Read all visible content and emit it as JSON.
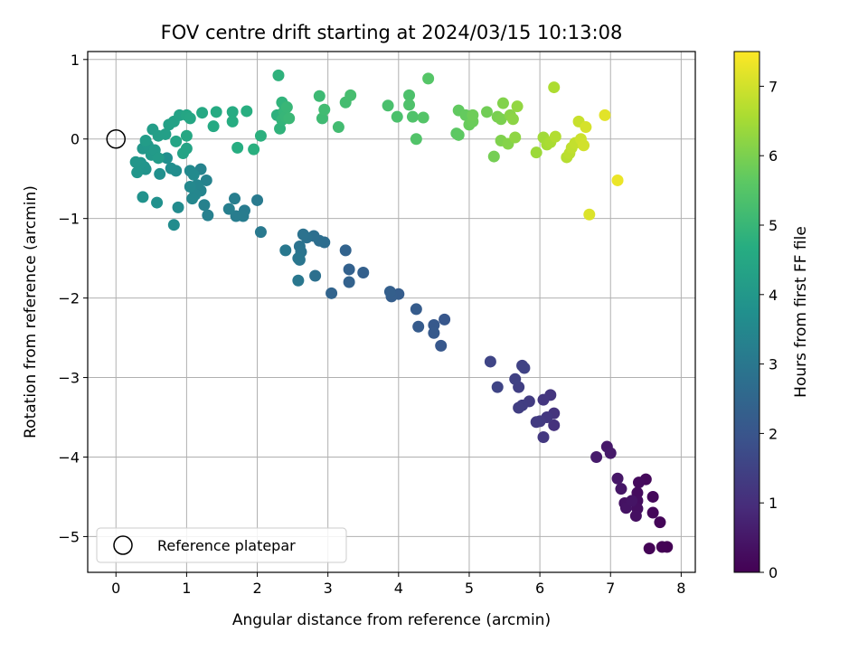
{
  "chart_data": {
    "type": "scatter",
    "title": "FOV centre drift starting at 2024/03/15 10:13:08",
    "xlabel": "Angular distance from reference (arcmin)",
    "ylabel": "Rotation from reference (arcmin)",
    "colorbar_label": "Hours from first FF file",
    "xlim": [
      -0.4,
      8.2
    ],
    "ylim": [
      -5.45,
      1.1
    ],
    "xticks": [
      0,
      1,
      2,
      3,
      4,
      5,
      6,
      7,
      8
    ],
    "xtick_labels": [
      "0",
      "1",
      "2",
      "3",
      "4",
      "5",
      "6",
      "7",
      "8"
    ],
    "yticks": [
      -5,
      -4,
      -3,
      -2,
      -1,
      0,
      1
    ],
    "ytick_labels": [
      "−5",
      "−4",
      "−3",
      "−2",
      "−1",
      "0",
      "1"
    ],
    "colorbar_range": [
      0,
      7.5
    ],
    "colorbar_ticks": [
      0,
      1,
      2,
      3,
      4,
      5,
      6,
      7
    ],
    "colorbar_tick_labels": [
      "0",
      "1",
      "2",
      "3",
      "4",
      "5",
      "6",
      "7"
    ],
    "colormap": "viridis",
    "grid": true,
    "legend": {
      "placement": "lower-left",
      "entries": [
        {
          "label": "Reference platepar",
          "marker": "open-circle"
        }
      ]
    },
    "reference_point": {
      "x": 0,
      "y": 0
    },
    "points": [
      {
        "x": 7.8,
        "y": -5.13,
        "t": 0.0
      },
      {
        "x": 7.73,
        "y": -5.13,
        "t": 0.03
      },
      {
        "x": 7.55,
        "y": -5.15,
        "t": 0.06
      },
      {
        "x": 7.7,
        "y": -4.82,
        "t": 0.09
      },
      {
        "x": 7.6,
        "y": -4.7,
        "t": 0.12
      },
      {
        "x": 7.6,
        "y": -4.5,
        "t": 0.15
      },
      {
        "x": 7.5,
        "y": -4.28,
        "t": 0.18
      },
      {
        "x": 7.4,
        "y": -4.32,
        "t": 0.21
      },
      {
        "x": 7.38,
        "y": -4.45,
        "t": 0.24
      },
      {
        "x": 7.38,
        "y": -4.55,
        "t": 0.27
      },
      {
        "x": 7.38,
        "y": -4.65,
        "t": 0.3
      },
      {
        "x": 7.36,
        "y": -4.74,
        "t": 0.33
      },
      {
        "x": 7.2,
        "y": -4.58,
        "t": 0.36
      },
      {
        "x": 7.22,
        "y": -4.64,
        "t": 0.39
      },
      {
        "x": 7.3,
        "y": -4.55,
        "t": 0.42
      },
      {
        "x": 7.15,
        "y": -4.4,
        "t": 0.45
      },
      {
        "x": 7.1,
        "y": -4.27,
        "t": 0.48
      },
      {
        "x": 6.95,
        "y": -3.87,
        "t": 0.51
      },
      {
        "x": 7.0,
        "y": -3.95,
        "t": 0.54
      },
      {
        "x": 6.8,
        "y": -4.0,
        "t": 0.57
      },
      {
        "x": 6.2,
        "y": -3.6,
        "t": 1.1
      },
      {
        "x": 6.2,
        "y": -3.45,
        "t": 1.13
      },
      {
        "x": 6.15,
        "y": -3.22,
        "t": 1.16
      },
      {
        "x": 6.05,
        "y": -3.28,
        "t": 1.19
      },
      {
        "x": 6.1,
        "y": -3.5,
        "t": 1.22
      },
      {
        "x": 6.05,
        "y": -3.75,
        "t": 1.25
      },
      {
        "x": 6.0,
        "y": -3.55,
        "t": 1.28
      },
      {
        "x": 5.95,
        "y": -3.56,
        "t": 1.31
      },
      {
        "x": 5.85,
        "y": -3.3,
        "t": 1.34
      },
      {
        "x": 5.75,
        "y": -3.35,
        "t": 1.37
      },
      {
        "x": 5.7,
        "y": -3.38,
        "t": 1.4
      },
      {
        "x": 5.7,
        "y": -3.12,
        "t": 1.43
      },
      {
        "x": 5.65,
        "y": -3.02,
        "t": 1.46
      },
      {
        "x": 5.75,
        "y": -2.85,
        "t": 1.49
      },
      {
        "x": 5.78,
        "y": -2.88,
        "t": 1.52
      },
      {
        "x": 5.4,
        "y": -3.12,
        "t": 1.55
      },
      {
        "x": 5.3,
        "y": -2.8,
        "t": 1.58
      },
      {
        "x": 4.65,
        "y": -2.27,
        "t": 2.05
      },
      {
        "x": 4.6,
        "y": -2.6,
        "t": 2.08
      },
      {
        "x": 4.5,
        "y": -2.34,
        "t": 2.11
      },
      {
        "x": 4.5,
        "y": -2.44,
        "t": 2.14
      },
      {
        "x": 4.28,
        "y": -2.36,
        "t": 2.17
      },
      {
        "x": 4.25,
        "y": -2.14,
        "t": 2.2
      },
      {
        "x": 4.0,
        "y": -1.95,
        "t": 2.23
      },
      {
        "x": 3.9,
        "y": -1.98,
        "t": 2.26
      },
      {
        "x": 3.88,
        "y": -1.92,
        "t": 2.29
      },
      {
        "x": 3.5,
        "y": -1.68,
        "t": 2.32
      },
      {
        "x": 3.3,
        "y": -1.64,
        "t": 2.35
      },
      {
        "x": 3.3,
        "y": -1.8,
        "t": 2.38
      },
      {
        "x": 3.25,
        "y": -1.4,
        "t": 2.41
      },
      {
        "x": 3.05,
        "y": -1.94,
        "t": 2.44
      },
      {
        "x": 2.95,
        "y": -1.3,
        "t": 2.7
      },
      {
        "x": 2.88,
        "y": -1.28,
        "t": 2.73
      },
      {
        "x": 2.8,
        "y": -1.22,
        "t": 2.76
      },
      {
        "x": 2.82,
        "y": -1.72,
        "t": 2.79
      },
      {
        "x": 2.7,
        "y": -1.24,
        "t": 2.82
      },
      {
        "x": 2.65,
        "y": -1.2,
        "t": 2.85
      },
      {
        "x": 2.6,
        "y": -1.35,
        "t": 2.88
      },
      {
        "x": 2.62,
        "y": -1.42,
        "t": 2.91
      },
      {
        "x": 2.6,
        "y": -1.52,
        "t": 2.94
      },
      {
        "x": 2.58,
        "y": -1.5,
        "t": 2.97
      },
      {
        "x": 2.58,
        "y": -1.78,
        "t": 3.0
      },
      {
        "x": 2.4,
        "y": -1.4,
        "t": 3.03
      },
      {
        "x": 2.05,
        "y": -1.17,
        "t": 3.06
      },
      {
        "x": 2.0,
        "y": -0.77,
        "t": 3.09
      },
      {
        "x": 1.82,
        "y": -0.9,
        "t": 3.12
      },
      {
        "x": 1.8,
        "y": -0.97,
        "t": 3.15
      },
      {
        "x": 1.7,
        "y": -0.97,
        "t": 3.18
      },
      {
        "x": 1.68,
        "y": -0.75,
        "t": 3.21
      },
      {
        "x": 1.6,
        "y": -0.88,
        "t": 3.24
      },
      {
        "x": 1.3,
        "y": -0.96,
        "t": 3.27
      },
      {
        "x": 1.25,
        "y": -0.83,
        "t": 3.3
      },
      {
        "x": 1.28,
        "y": -0.52,
        "t": 3.33
      },
      {
        "x": 1.2,
        "y": -0.38,
        "t": 3.36
      },
      {
        "x": 1.2,
        "y": -0.65,
        "t": 3.39
      },
      {
        "x": 1.15,
        "y": -0.58,
        "t": 3.42
      },
      {
        "x": 1.12,
        "y": -0.7,
        "t": 3.45
      },
      {
        "x": 1.08,
        "y": -0.75,
        "t": 3.48
      },
      {
        "x": 1.05,
        "y": -0.6,
        "t": 3.51
      },
      {
        "x": 1.05,
        "y": -0.4,
        "t": 3.54
      },
      {
        "x": 1.1,
        "y": -0.45,
        "t": 3.57
      },
      {
        "x": 0.88,
        "y": -0.86,
        "t": 3.6
      },
      {
        "x": 0.82,
        "y": -1.08,
        "t": 3.63
      },
      {
        "x": 0.85,
        "y": -0.4,
        "t": 3.66
      },
      {
        "x": 0.78,
        "y": -0.37,
        "t": 3.69
      },
      {
        "x": 0.72,
        "y": -0.24,
        "t": 3.72
      },
      {
        "x": 0.62,
        "y": -0.44,
        "t": 3.75
      },
      {
        "x": 0.58,
        "y": -0.8,
        "t": 3.78
      },
      {
        "x": 0.38,
        "y": -0.73,
        "t": 3.81
      },
      {
        "x": 0.42,
        "y": -0.38,
        "t": 3.84
      },
      {
        "x": 0.4,
        "y": -0.35,
        "t": 3.87
      },
      {
        "x": 0.35,
        "y": -0.3,
        "t": 3.9
      },
      {
        "x": 0.3,
        "y": -0.42,
        "t": 3.93
      },
      {
        "x": 0.28,
        "y": -0.29,
        "t": 3.96
      },
      {
        "x": 0.38,
        "y": -0.12,
        "t": 3.99
      },
      {
        "x": 0.45,
        "y": -0.08,
        "t": 4.02
      },
      {
        "x": 0.5,
        "y": -0.2,
        "t": 4.05
      },
      {
        "x": 0.55,
        "y": -0.14,
        "t": 4.08
      },
      {
        "x": 0.6,
        "y": -0.24,
        "t": 4.11
      },
      {
        "x": 0.42,
        "y": -0.02,
        "t": 4.14
      },
      {
        "x": 0.52,
        "y": 0.12,
        "t": 4.17
      },
      {
        "x": 0.6,
        "y": 0.04,
        "t": 4.2
      },
      {
        "x": 0.7,
        "y": 0.06,
        "t": 4.23
      },
      {
        "x": 0.75,
        "y": 0.18,
        "t": 4.26
      },
      {
        "x": 0.82,
        "y": 0.22,
        "t": 4.29
      },
      {
        "x": 0.9,
        "y": 0.3,
        "t": 4.32
      },
      {
        "x": 0.95,
        "y": -0.18,
        "t": 4.35
      },
      {
        "x": 1.0,
        "y": -0.12,
        "t": 4.38
      },
      {
        "x": 0.85,
        "y": -0.03,
        "t": 4.41
      },
      {
        "x": 1.0,
        "y": 0.3,
        "t": 4.44
      },
      {
        "x": 1.05,
        "y": 0.26,
        "t": 4.47
      },
      {
        "x": 1.0,
        "y": 0.04,
        "t": 4.5
      },
      {
        "x": 1.22,
        "y": 0.33,
        "t": 4.53
      },
      {
        "x": 1.38,
        "y": 0.16,
        "t": 4.56
      },
      {
        "x": 1.42,
        "y": 0.34,
        "t": 4.59
      },
      {
        "x": 1.65,
        "y": 0.34,
        "t": 4.62
      },
      {
        "x": 1.65,
        "y": 0.22,
        "t": 4.65
      },
      {
        "x": 1.72,
        "y": -0.11,
        "t": 4.68
      },
      {
        "x": 1.85,
        "y": 0.35,
        "t": 4.71
      },
      {
        "x": 1.95,
        "y": -0.13,
        "t": 4.74
      },
      {
        "x": 2.05,
        "y": 0.04,
        "t": 4.77
      },
      {
        "x": 2.28,
        "y": 0.3,
        "t": 4.8
      },
      {
        "x": 2.3,
        "y": 0.8,
        "t": 4.83
      },
      {
        "x": 2.32,
        "y": 0.13,
        "t": 4.86
      },
      {
        "x": 2.35,
        "y": 0.46,
        "t": 4.89
      },
      {
        "x": 2.35,
        "y": 0.24,
        "t": 4.92
      },
      {
        "x": 2.38,
        "y": 0.35,
        "t": 4.95
      },
      {
        "x": 2.4,
        "y": 0.28,
        "t": 4.98
      },
      {
        "x": 2.42,
        "y": 0.4,
        "t": 5.01
      },
      {
        "x": 2.45,
        "y": 0.26,
        "t": 5.04
      },
      {
        "x": 2.88,
        "y": 0.54,
        "t": 5.1
      },
      {
        "x": 2.92,
        "y": 0.26,
        "t": 5.13
      },
      {
        "x": 2.95,
        "y": 0.37,
        "t": 5.16
      },
      {
        "x": 3.15,
        "y": 0.15,
        "t": 5.19
      },
      {
        "x": 3.25,
        "y": 0.46,
        "t": 5.22
      },
      {
        "x": 3.32,
        "y": 0.55,
        "t": 5.25
      },
      {
        "x": 3.85,
        "y": 0.42,
        "t": 5.3
      },
      {
        "x": 3.98,
        "y": 0.28,
        "t": 5.33
      },
      {
        "x": 4.15,
        "y": 0.55,
        "t": 5.36
      },
      {
        "x": 4.15,
        "y": 0.43,
        "t": 5.39
      },
      {
        "x": 4.2,
        "y": 0.28,
        "t": 5.42
      },
      {
        "x": 4.25,
        "y": 0.0,
        "t": 5.45
      },
      {
        "x": 4.35,
        "y": 0.27,
        "t": 5.48
      },
      {
        "x": 4.42,
        "y": 0.76,
        "t": 5.51
      },
      {
        "x": 4.82,
        "y": 0.07,
        "t": 5.6
      },
      {
        "x": 4.85,
        "y": 0.05,
        "t": 5.64
      },
      {
        "x": 4.85,
        "y": 0.36,
        "t": 5.68
      },
      {
        "x": 4.95,
        "y": 0.3,
        "t": 5.72
      },
      {
        "x": 5.0,
        "y": 0.18,
        "t": 5.76
      },
      {
        "x": 5.05,
        "y": 0.22,
        "t": 5.8
      },
      {
        "x": 5.05,
        "y": 0.3,
        "t": 5.84
      },
      {
        "x": 5.25,
        "y": 0.34,
        "t": 5.88
      },
      {
        "x": 5.35,
        "y": -0.22,
        "t": 5.92
      },
      {
        "x": 5.4,
        "y": 0.28,
        "t": 5.96
      },
      {
        "x": 5.45,
        "y": 0.25,
        "t": 6.0
      },
      {
        "x": 5.45,
        "y": -0.02,
        "t": 6.04
      },
      {
        "x": 5.48,
        "y": 0.45,
        "t": 6.08
      },
      {
        "x": 5.55,
        "y": -0.06,
        "t": 6.12
      },
      {
        "x": 5.58,
        "y": 0.3,
        "t": 6.16
      },
      {
        "x": 5.62,
        "y": 0.25,
        "t": 6.2
      },
      {
        "x": 5.65,
        "y": 0.02,
        "t": 6.24
      },
      {
        "x": 5.68,
        "y": 0.41,
        "t": 6.28
      },
      {
        "x": 5.95,
        "y": -0.17,
        "t": 6.4
      },
      {
        "x": 6.05,
        "y": 0.02,
        "t": 6.45
      },
      {
        "x": 6.1,
        "y": -0.07,
        "t": 6.5
      },
      {
        "x": 6.15,
        "y": -0.04,
        "t": 6.55
      },
      {
        "x": 6.2,
        "y": 0.65,
        "t": 6.6
      },
      {
        "x": 6.22,
        "y": 0.03,
        "t": 6.65
      },
      {
        "x": 6.38,
        "y": -0.23,
        "t": 6.7
      },
      {
        "x": 6.42,
        "y": -0.18,
        "t": 6.75
      },
      {
        "x": 6.45,
        "y": -0.11,
        "t": 6.8
      },
      {
        "x": 6.5,
        "y": -0.05,
        "t": 6.85
      },
      {
        "x": 6.55,
        "y": 0.22,
        "t": 6.9
      },
      {
        "x": 6.58,
        "y": 0.0,
        "t": 6.95
      },
      {
        "x": 6.62,
        "y": -0.08,
        "t": 7.0
      },
      {
        "x": 6.65,
        "y": 0.15,
        "t": 7.05
      },
      {
        "x": 6.7,
        "y": -0.95,
        "t": 7.12
      },
      {
        "x": 6.92,
        "y": 0.3,
        "t": 7.2
      },
      {
        "x": 7.1,
        "y": -0.52,
        "t": 7.3
      }
    ]
  }
}
